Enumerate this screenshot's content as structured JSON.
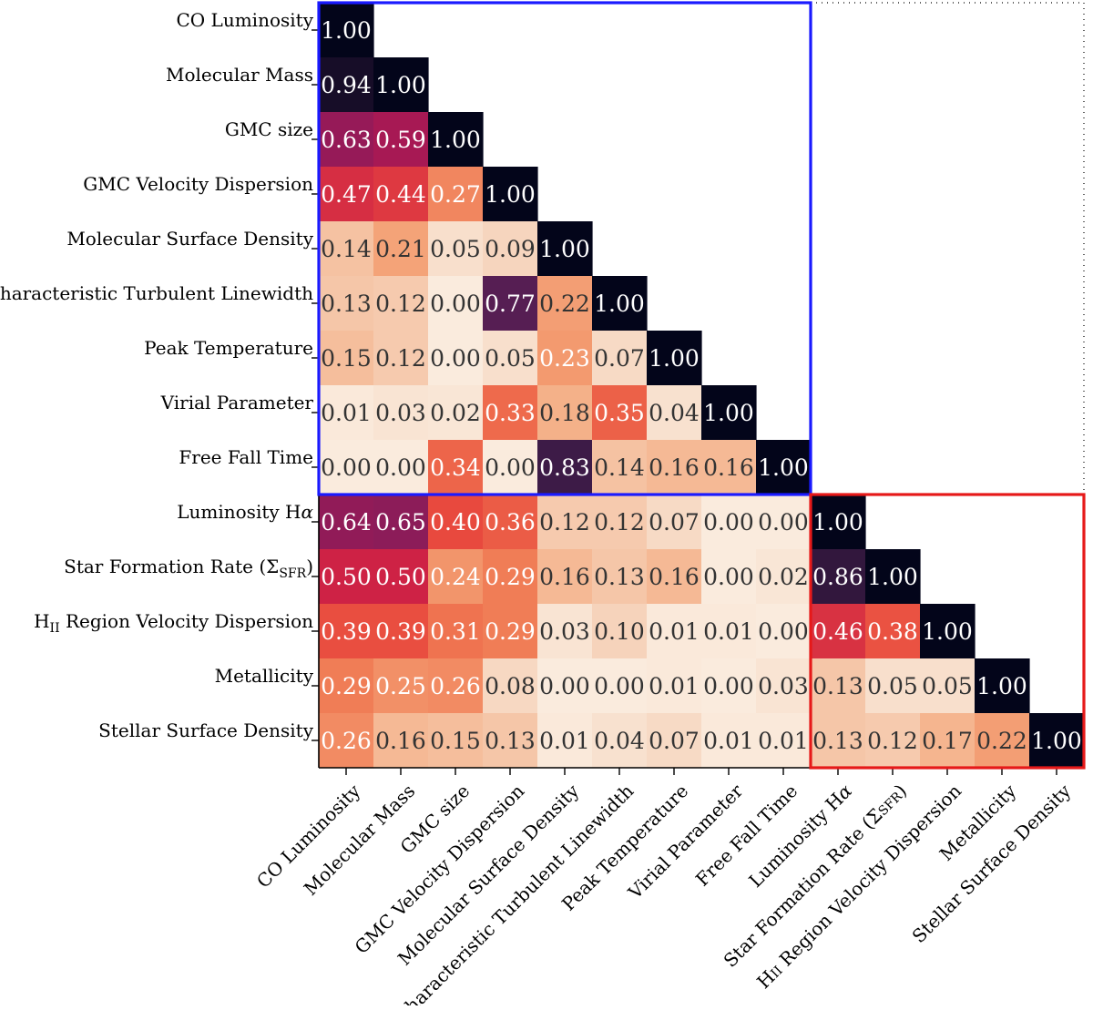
{
  "chart_data": {
    "type": "heatmap",
    "subtype": "lower-triangular correlation matrix",
    "colormap": "rocket",
    "value_range": [
      0,
      1
    ],
    "labels": [
      "CO Luminosity",
      "Molecular Mass",
      "GMC size",
      "GMC Velocity Dispersion",
      "Molecular Surface Density",
      "Characteristic Turbulent Linewidth",
      "Peak Temperature",
      "Virial Parameter",
      "Free Fall Time",
      "Luminosity Hα",
      "Star Formation Rate (ΣSFR)",
      "HII Region Velocity Dispersion",
      "Metallicity",
      "Stellar Surface Density"
    ],
    "rich_labels": {
      "9": [
        {
          "t": "Luminosity H"
        },
        {
          "t": "α",
          "italic": true
        }
      ],
      "10": [
        {
          "t": "Star Formation Rate (Σ"
        },
        {
          "t": "SFR",
          "sub": true
        },
        {
          "t": ")"
        }
      ],
      "11": [
        {
          "t": "H"
        },
        {
          "t": "II",
          "sub": true
        },
        {
          "t": " Region Velocity Dispersion"
        }
      ]
    },
    "matrix": [
      [
        1.0
      ],
      [
        0.94,
        1.0
      ],
      [
        0.63,
        0.59,
        1.0
      ],
      [
        0.47,
        0.44,
        0.27,
        1.0
      ],
      [
        0.14,
        0.21,
        0.05,
        0.09,
        1.0
      ],
      [
        0.13,
        0.12,
        0.0,
        0.77,
        0.22,
        1.0
      ],
      [
        0.15,
        0.12,
        0.0,
        0.05,
        0.23,
        0.07,
        1.0
      ],
      [
        0.01,
        0.03,
        0.02,
        0.33,
        0.18,
        0.35,
        0.04,
        1.0
      ],
      [
        0.0,
        0.0,
        0.34,
        0.0,
        0.83,
        0.14,
        0.16,
        0.16,
        1.0
      ],
      [
        0.64,
        0.65,
        0.4,
        0.36,
        0.12,
        0.12,
        0.07,
        0.0,
        0.0,
        1.0
      ],
      [
        0.5,
        0.5,
        0.24,
        0.29,
        0.16,
        0.13,
        0.16,
        0.0,
        0.02,
        0.86,
        1.0
      ],
      [
        0.39,
        0.39,
        0.31,
        0.29,
        0.03,
        0.1,
        0.01,
        0.01,
        0.0,
        0.46,
        0.38,
        1.0
      ],
      [
        0.29,
        0.25,
        0.26,
        0.08,
        0.0,
        0.0,
        0.01,
        0.0,
        0.03,
        0.13,
        0.05,
        0.05,
        1.0
      ],
      [
        0.26,
        0.16,
        0.15,
        0.13,
        0.01,
        0.04,
        0.07,
        0.01,
        0.01,
        0.13,
        0.12,
        0.17,
        0.22,
        1.0
      ]
    ],
    "highlight_boxes": [
      {
        "name": "molecular-gas-block",
        "from_index": 0,
        "to_index": 8,
        "color": "#1a1aff"
      },
      {
        "name": "star-formation-block",
        "from_index": 9,
        "to_index": 13,
        "color": "#e61919"
      }
    ],
    "title": "",
    "xlabel": "",
    "ylabel": ""
  }
}
